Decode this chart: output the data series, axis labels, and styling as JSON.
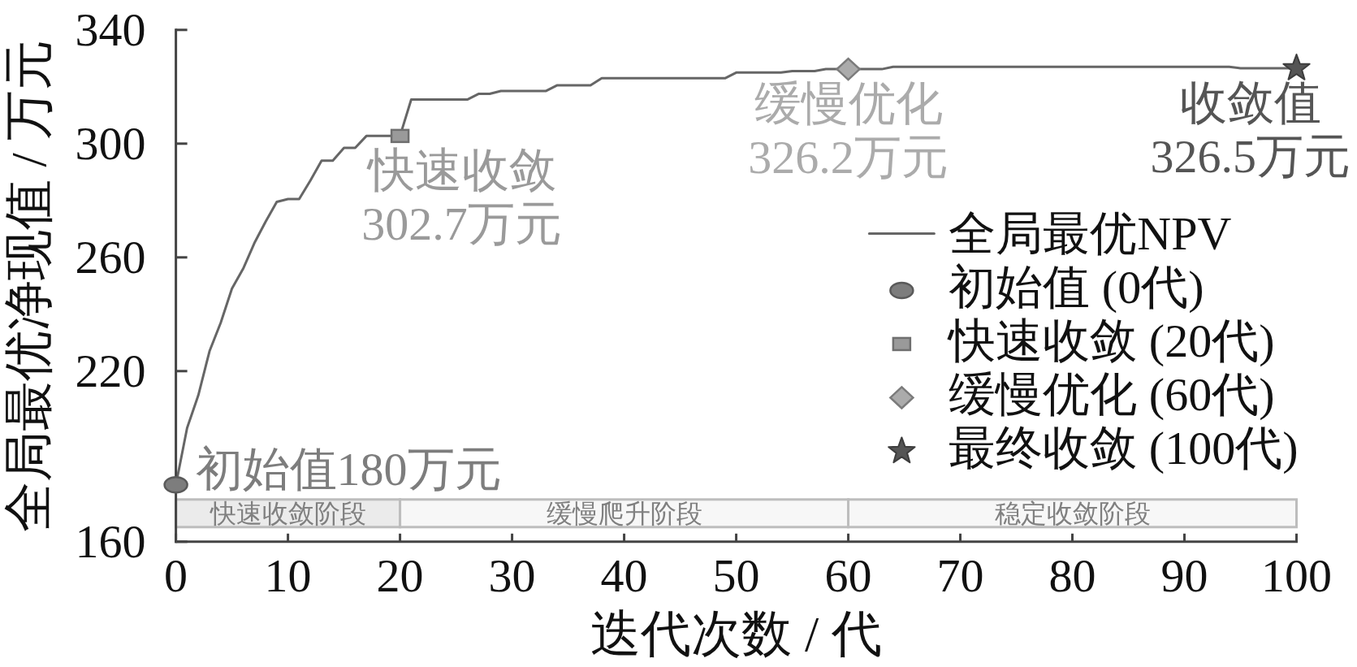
{
  "chart_data": {
    "type": "line",
    "xlabel": "迭代次数 / 代",
    "ylabel": "全局最优净现值 / 万元",
    "xlim": [
      0,
      100
    ],
    "xticks": [
      0,
      10,
      20,
      30,
      40,
      50,
      60,
      70,
      80,
      90,
      100
    ],
    "ylim": [
      160,
      340
    ],
    "yticks": [
      160,
      220,
      260,
      300,
      340
    ],
    "legend": "right",
    "series": [
      {
        "name": "全局最优NPV",
        "color": "#666666",
        "x": [
          0,
          1,
          2,
          3,
          4,
          5,
          6,
          7,
          8,
          9,
          10,
          11,
          12,
          13,
          14,
          15,
          16,
          17,
          20,
          21,
          26,
          27,
          28,
          29,
          33,
          34,
          37,
          38,
          49,
          50,
          54,
          55,
          57,
          58,
          63,
          64,
          94,
          95,
          100
        ],
        "values": [
          180,
          200,
          211.5,
          227,
          237,
          249,
          256,
          265,
          272.5,
          279.5,
          280.5,
          280.5,
          287,
          294,
          294,
          298.5,
          298.5,
          302.7,
          302.7,
          315.5,
          315.5,
          317.5,
          317.5,
          318.5,
          318.5,
          320.5,
          320.5,
          323,
          323,
          325,
          325,
          325.5,
          325.5,
          326.2,
          326.2,
          327,
          327,
          326.5,
          326.5
        ]
      },
      {
        "name": "初始值 (0代)",
        "type": "scatter",
        "marker": "circle",
        "color": "#7d7d7d",
        "x": [
          0
        ],
        "values": [
          180
        ]
      },
      {
        "name": "快速收敛 (20代)",
        "type": "scatter",
        "marker": "square",
        "color": "#9a9a9a",
        "x": [
          20
        ],
        "values": [
          302.7
        ]
      },
      {
        "name": "缓慢优化 (60代)",
        "type": "scatter",
        "marker": "diamond",
        "color": "#ababab",
        "x": [
          60
        ],
        "values": [
          326.2
        ]
      },
      {
        "name": "最终收敛 (100代)",
        "type": "scatter",
        "marker": "star",
        "color": "#555555",
        "x": [
          100
        ],
        "values": [
          326.5
        ]
      }
    ],
    "annotations": [
      {
        "text": "初始值180万元",
        "x": 0,
        "y": 180
      },
      {
        "text": "快速收敛\n302.7万元",
        "x": 20,
        "y": 302.7
      },
      {
        "text": "缓慢优化\n326.2万元",
        "x": 60,
        "y": 326.2
      },
      {
        "text": "收敛值\n326.5万元",
        "x": 100,
        "y": 326.5
      }
    ],
    "bands": [
      {
        "axis": "x",
        "from": 0,
        "to": 20,
        "label": "快速收敛阶段",
        "color": "#ebebeb"
      },
      {
        "axis": "x",
        "from": 20,
        "to": 60,
        "label": "缓慢爬升阶段",
        "color": "#f7f7f7"
      },
      {
        "axis": "x",
        "from": 60,
        "to": 100,
        "label": "稳定收敛阶段",
        "color": "#f7f7f7"
      }
    ]
  }
}
